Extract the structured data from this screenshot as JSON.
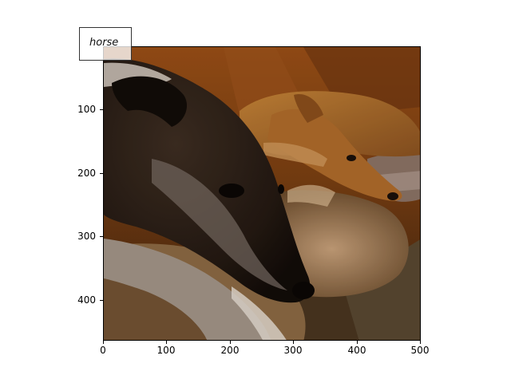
{
  "image": {
    "label": "horse",
    "x_ticks": [
      "0",
      "100",
      "200",
      "300",
      "400",
      "500"
    ],
    "y_ticks": [
      "100",
      "200",
      "300",
      "400"
    ],
    "colors": {
      "warm_bg": "#7a3f12",
      "sofa_shadow": "#3a1f0b",
      "dog_tan": "#b7752f",
      "cushion": "#c7a078",
      "dark_dog": "#2a1e15",
      "frame": "#000000"
    }
  }
}
